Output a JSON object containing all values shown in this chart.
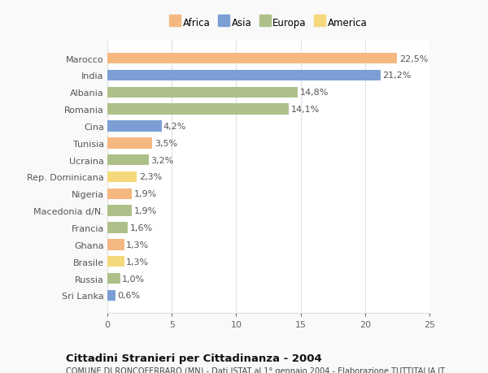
{
  "categories": [
    "Sri Lanka",
    "Russia",
    "Brasile",
    "Ghana",
    "Francia",
    "Macedonia d/N.",
    "Nigeria",
    "Rep. Dominicana",
    "Ucraina",
    "Tunisia",
    "Cina",
    "Romania",
    "Albania",
    "India",
    "Marocco"
  ],
  "values": [
    0.6,
    1.0,
    1.3,
    1.3,
    1.6,
    1.9,
    1.9,
    2.3,
    3.2,
    3.5,
    4.2,
    14.1,
    14.8,
    21.2,
    22.5
  ],
  "labels": [
    "0,6%",
    "1,0%",
    "1,3%",
    "1,3%",
    "1,6%",
    "1,9%",
    "1,9%",
    "2,3%",
    "3,2%",
    "3,5%",
    "4,2%",
    "14,1%",
    "14,8%",
    "21,2%",
    "22,5%"
  ],
  "continent": [
    "Asia",
    "Europa",
    "America",
    "Africa",
    "Europa",
    "Europa",
    "Africa",
    "America",
    "Europa",
    "Africa",
    "Asia",
    "Europa",
    "Europa",
    "Asia",
    "Africa"
  ],
  "legend_labels": [
    "Africa",
    "Asia",
    "Europa",
    "America"
  ],
  "legend_colors": [
    "#f5b880",
    "#7b9fd4",
    "#adc08a",
    "#f5d87a"
  ],
  "title": "Cittadini Stranieri per Cittadinanza - 2004",
  "subtitle": "COMUNE DI RONCOFERRARO (MN) - Dati ISTAT al 1° gennaio 2004 - Elaborazione TUTTITALIA.IT",
  "xlim": [
    0,
    25
  ],
  "xticks": [
    0,
    5,
    10,
    15,
    20,
    25
  ],
  "background_color": "#f9f9f9",
  "bar_background": "#ffffff",
  "grid_color": "#e0e0e0",
  "label_fontsize": 8,
  "tick_fontsize": 8,
  "bar_height": 0.65
}
